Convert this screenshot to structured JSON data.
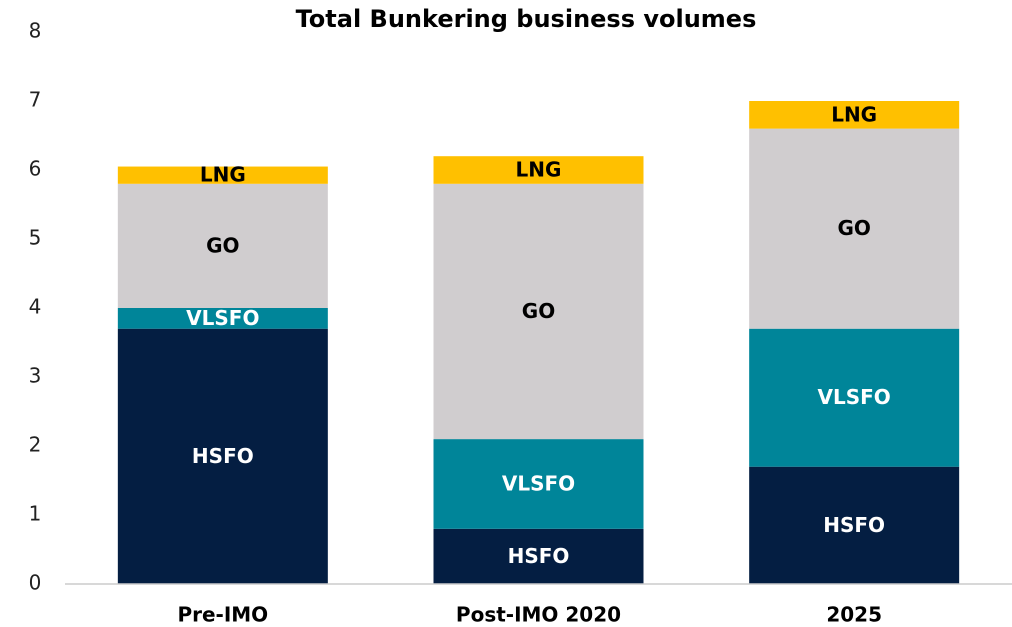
{
  "chart_data": {
    "type": "stacked_bar",
    "title": "Total Bunkering business volumes",
    "categories": [
      "Pre-IMO",
      "Post-IMO 2020",
      "2025"
    ],
    "series": [
      {
        "name": "HSFO",
        "color": "#041e42",
        "values": [
          3.7,
          0.8,
          1.7
        ]
      },
      {
        "name": "VLSFO",
        "color": "#008599",
        "values": [
          0.3,
          1.3,
          2.0
        ]
      },
      {
        "name": "GO",
        "color": "#d0cdcf",
        "values": [
          1.8,
          3.7,
          2.9
        ]
      },
      {
        "name": "LNG",
        "color": "#ffc000",
        "values": [
          0.25,
          0.4,
          0.4
        ]
      }
    ],
    "ylim": [
      0,
      8
    ],
    "yticks": [
      0,
      1,
      2,
      3,
      4,
      5,
      6,
      7,
      8
    ],
    "grid": false
  }
}
